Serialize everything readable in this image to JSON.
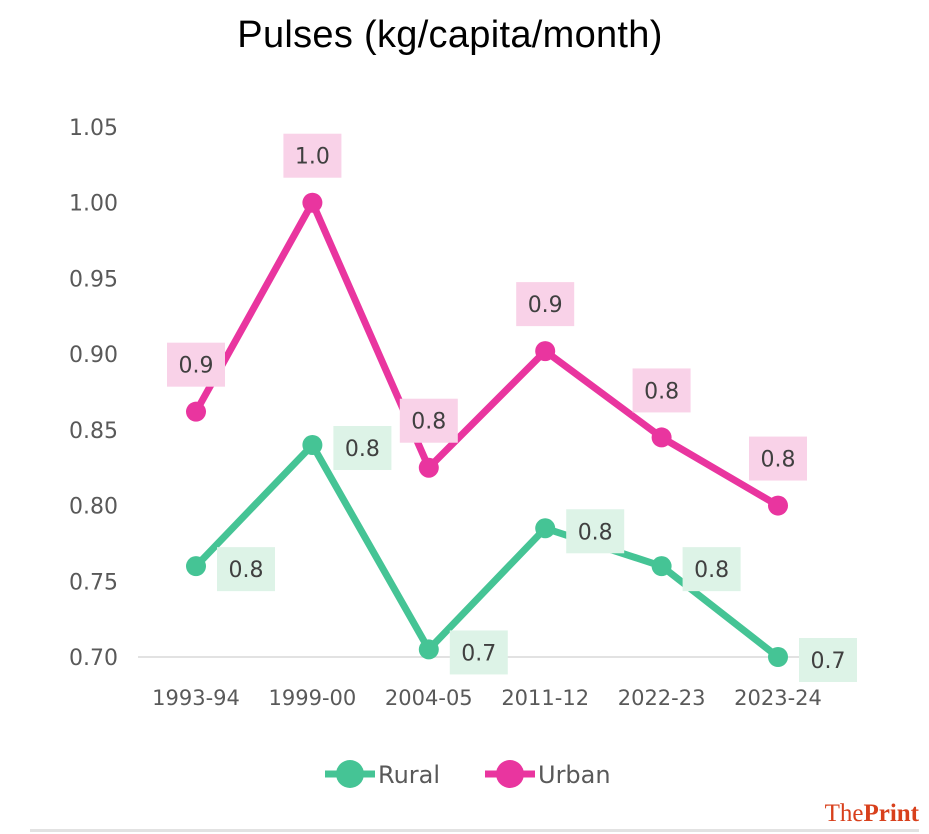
{
  "chart_data": {
    "type": "line",
    "title": "Pulses (kg/capita/month)",
    "xlabel": "",
    "ylabel": "",
    "categories": [
      "1993-94",
      "1999-00",
      "2004-05",
      "2011-12",
      "2022-23",
      "2023-24"
    ],
    "ylim": [
      0.7,
      1.05
    ],
    "yticks": [
      "0.70",
      "0.75",
      "0.80",
      "0.85",
      "0.90",
      "0.95",
      "1.00",
      "1.05"
    ],
    "grid": false,
    "legend_position": "bottom",
    "series": [
      {
        "name": "Rural",
        "color": "#45c495",
        "label_bg": "#ddf3e7",
        "values": [
          0.76,
          0.84,
          0.705,
          0.785,
          0.76,
          0.7
        ],
        "labels": [
          "0.8",
          "0.8",
          "0.7",
          "0.8",
          "0.8",
          "0.7"
        ]
      },
      {
        "name": "Urban",
        "color": "#e9359f",
        "label_bg": "#f9d2e8",
        "values": [
          0.862,
          1.0,
          0.825,
          0.902,
          0.845,
          0.8
        ],
        "labels": [
          "0.9",
          "1.0",
          "0.8",
          "0.9",
          "0.8",
          "0.8"
        ]
      }
    ]
  },
  "logo": {
    "the": "The",
    "print": "Print"
  }
}
